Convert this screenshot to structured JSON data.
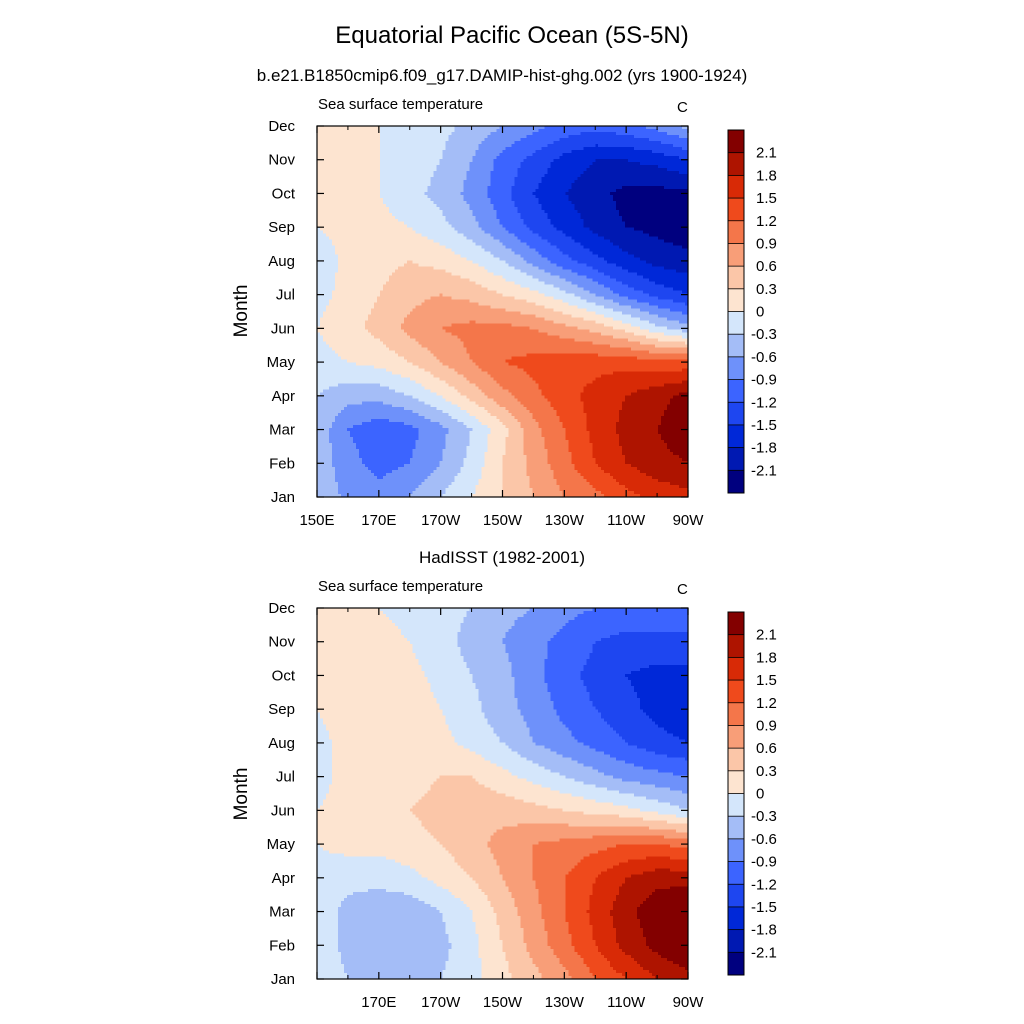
{
  "title": "Equatorial Pacific Ocean (5S-5N)",
  "units": "C",
  "colorbar": {
    "levels": [
      -2.1,
      -1.8,
      -1.5,
      -1.2,
      -0.9,
      -0.6,
      -0.3,
      0,
      0.3,
      0.6,
      0.9,
      1.2,
      1.5,
      1.8,
      2.1
    ],
    "labels": [
      "-2.1",
      "-1.8",
      "-1.5",
      "-1.2",
      "-0.9",
      "-0.6",
      "-0.3",
      "0",
      "0.3",
      "0.6",
      "0.9",
      "1.2",
      "1.5",
      "1.8",
      "2.1"
    ],
    "colors": [
      "#00007f",
      "#0019b2",
      "#0028d8",
      "#1e46f0",
      "#3c64ff",
      "#6e91fa",
      "#a4bdf7",
      "#d4e6fb",
      "#fde4d0",
      "#fbc6a8",
      "#f89e78",
      "#f4764a",
      "#ef4a1c",
      "#d82a06",
      "#ae1400",
      "#830000"
    ]
  },
  "panels": [
    {
      "subtitle": "b.e21.B1850cmip6.f09_g17.DAMIP-hist-ghg.002 (yrs 1900-1924)",
      "variable": "Sea surface temperature",
      "units": "C",
      "ylabel": "Month",
      "xticks": [
        "150E",
        "170E",
        "170W",
        "150W",
        "130W",
        "110W",
        "90W"
      ],
      "yticks": [
        "Jan",
        "Feb",
        "Mar",
        "Apr",
        "May",
        "Jun",
        "Jul",
        "Aug",
        "Sep",
        "Oct",
        "Nov",
        "Dec"
      ]
    },
    {
      "subtitle": "HadISST (1982-2001)",
      "variable": "Sea surface temperature",
      "units": "C",
      "ylabel": "Month",
      "xticks": [
        "",
        "170E",
        "170W",
        "150W",
        "130W",
        "110W",
        "90W"
      ],
      "yticks": [
        "Jan",
        "Feb",
        "Mar",
        "Apr",
        "May",
        "Jun",
        "Jul",
        "Aug",
        "Sep",
        "Oct",
        "Nov",
        "Dec"
      ]
    }
  ],
  "chart_data": [
    {
      "type": "heatmap",
      "title": "b.e21.B1850cmip6.f09_g17.DAMIP-hist-ghg.002 (yrs 1900-1924)",
      "xlabel": "",
      "ylabel": "Month",
      "x": [
        150,
        160,
        170,
        180,
        190,
        200,
        210,
        220,
        230,
        240,
        250,
        260,
        270
      ],
      "y": [
        1,
        2,
        3,
        4,
        5,
        6,
        7,
        8,
        9,
        10,
        11,
        12
      ],
      "xlim": [
        150,
        270
      ],
      "ylim": [
        1,
        12
      ],
      "clim": [
        -2.25,
        2.25
      ],
      "z": [
        [
          -0.3,
          -0.7,
          -0.8,
          -0.6,
          -0.3,
          0.0,
          0.3,
          0.6,
          0.9,
          1.1,
          1.4,
          1.6,
          1.7
        ],
        [
          -0.4,
          -0.8,
          -1.0,
          -0.9,
          -0.6,
          -0.2,
          0.3,
          0.7,
          1.1,
          1.5,
          1.8,
          2.0,
          2.1
        ],
        [
          -0.4,
          -0.9,
          -1.1,
          -1.0,
          -0.7,
          -0.3,
          0.2,
          0.8,
          1.2,
          1.6,
          1.9,
          2.1,
          2.3
        ],
        [
          -0.3,
          -0.5,
          -0.5,
          -0.3,
          0.0,
          0.4,
          0.8,
          1.1,
          1.4,
          1.6,
          1.8,
          2.0,
          2.2
        ],
        [
          -0.1,
          0.0,
          0.1,
          0.3,
          0.6,
          0.9,
          1.2,
          1.3,
          1.4,
          1.4,
          1.4,
          1.3,
          1.3
        ],
        [
          0.0,
          0.2,
          0.4,
          0.7,
          0.9,
          1.0,
          1.0,
          0.9,
          0.7,
          0.5,
          0.2,
          -0.2,
          -0.5
        ],
        [
          -0.1,
          0.1,
          0.3,
          0.5,
          0.6,
          0.5,
          0.3,
          0.1,
          -0.2,
          -0.6,
          -1.0,
          -1.3,
          -1.5
        ],
        [
          -0.2,
          0.1,
          0.2,
          0.3,
          0.2,
          0.0,
          -0.3,
          -0.7,
          -1.1,
          -1.4,
          -1.7,
          -1.9,
          -2.0
        ],
        [
          0.0,
          0.1,
          0.1,
          0.0,
          -0.2,
          -0.5,
          -0.9,
          -1.3,
          -1.6,
          -1.9,
          -2.1,
          -2.2,
          -2.3
        ],
        [
          0.1,
          0.1,
          0.0,
          -0.2,
          -0.4,
          -0.7,
          -1.1,
          -1.5,
          -1.8,
          -2.0,
          -2.2,
          -2.2,
          -2.2
        ],
        [
          0.1,
          0.1,
          0.0,
          -0.1,
          -0.3,
          -0.6,
          -1.0,
          -1.3,
          -1.6,
          -1.8,
          -1.8,
          -1.7,
          -1.5
        ],
        [
          0.1,
          0.1,
          0.0,
          -0.1,
          -0.2,
          -0.4,
          -0.6,
          -0.8,
          -1.0,
          -1.1,
          -1.0,
          -0.8,
          -0.5
        ]
      ]
    },
    {
      "type": "heatmap",
      "title": "HadISST (1982-2001)",
      "xlabel": "",
      "ylabel": "Month",
      "x": [
        150,
        160,
        170,
        180,
        190,
        200,
        210,
        220,
        230,
        240,
        250,
        260,
        270
      ],
      "y": [
        1,
        2,
        3,
        4,
        5,
        6,
        7,
        8,
        9,
        10,
        11,
        12
      ],
      "xlim": [
        150,
        270
      ],
      "ylim": [
        1,
        12
      ],
      "clim": [
        -2.25,
        2.25
      ],
      "z": [
        [
          -0.1,
          -0.3,
          -0.4,
          -0.4,
          -0.3,
          -0.1,
          0.2,
          0.5,
          0.8,
          1.2,
          1.5,
          1.8,
          2.0
        ],
        [
          -0.1,
          -0.4,
          -0.5,
          -0.5,
          -0.4,
          -0.1,
          0.3,
          0.7,
          1.1,
          1.5,
          1.9,
          2.2,
          2.4
        ],
        [
          -0.1,
          -0.4,
          -0.5,
          -0.5,
          -0.3,
          0.0,
          0.4,
          0.8,
          1.2,
          1.6,
          2.0,
          2.3,
          2.4
        ],
        [
          -0.1,
          -0.2,
          -0.2,
          -0.1,
          0.1,
          0.3,
          0.6,
          0.9,
          1.2,
          1.5,
          1.8,
          2.0,
          2.0
        ],
        [
          0.0,
          0.1,
          0.1,
          0.2,
          0.3,
          0.5,
          0.7,
          0.9,
          1.0,
          1.1,
          1.2,
          1.2,
          1.1
        ],
        [
          0.0,
          0.1,
          0.2,
          0.3,
          0.4,
          0.5,
          0.5,
          0.4,
          0.3,
          0.2,
          0.1,
          -0.1,
          -0.3
        ],
        [
          -0.1,
          0.1,
          0.1,
          0.2,
          0.3,
          0.3,
          0.1,
          -0.1,
          -0.3,
          -0.5,
          -0.7,
          -0.8,
          -0.9
        ],
        [
          -0.1,
          0.1,
          0.2,
          0.2,
          0.1,
          -0.1,
          -0.3,
          -0.6,
          -0.8,
          -1.0,
          -1.2,
          -1.4,
          -1.5
        ],
        [
          0.0,
          0.2,
          0.3,
          0.2,
          0.0,
          -0.2,
          -0.5,
          -0.7,
          -1.0,
          -1.2,
          -1.4,
          -1.6,
          -1.7
        ],
        [
          0.1,
          0.2,
          0.2,
          0.1,
          -0.1,
          -0.3,
          -0.5,
          -0.8,
          -1.1,
          -1.3,
          -1.5,
          -1.6,
          -1.6
        ],
        [
          0.1,
          0.2,
          0.1,
          0.0,
          -0.2,
          -0.4,
          -0.6,
          -0.8,
          -1.0,
          -1.2,
          -1.3,
          -1.3,
          -1.3
        ],
        [
          0.1,
          0.1,
          0.0,
          -0.1,
          -0.2,
          -0.3,
          -0.5,
          -0.6,
          -0.8,
          -0.9,
          -1.0,
          -1.0,
          -0.9
        ]
      ]
    }
  ]
}
